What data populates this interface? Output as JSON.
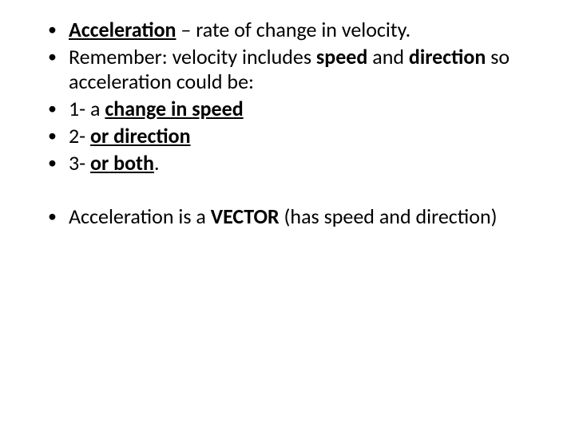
{
  "slide": {
    "background_color": "#ffffff",
    "text_color": "#000000",
    "font_family": "Calibri",
    "body_fontsize_pt": 20,
    "bullets_group1": [
      {
        "segments": [
          {
            "text": "Acceleration",
            "bold": true,
            "underline": true
          },
          {
            "text": " – rate of change in velocity.",
            "bold": false,
            "underline": false
          }
        ]
      },
      {
        "segments": [
          {
            "text": "Remember: velocity includes ",
            "bold": false,
            "underline": false
          },
          {
            "text": "speed",
            "bold": true,
            "underline": false
          },
          {
            "text": " and ",
            "bold": false,
            "underline": false
          },
          {
            "text": "direction",
            "bold": true,
            "underline": false
          },
          {
            "text": " so acceleration could be:",
            "bold": false,
            "underline": false
          }
        ]
      },
      {
        "segments": [
          {
            "text": "1- a ",
            "bold": false,
            "underline": false
          },
          {
            "text": "change in speed",
            "bold": true,
            "underline": true
          }
        ]
      },
      {
        "segments": [
          {
            "text": "2- ",
            "bold": false,
            "underline": false
          },
          {
            "text": "or direction",
            "bold": true,
            "underline": true
          }
        ]
      },
      {
        "segments": [
          {
            "text": "3- ",
            "bold": false,
            "underline": false
          },
          {
            "text": "or both",
            "bold": true,
            "underline": true
          },
          {
            "text": ".",
            "bold": false,
            "underline": false
          }
        ]
      }
    ],
    "bullets_group2": [
      {
        "segments": [
          {
            "text": "Acceleration is a ",
            "bold": false,
            "underline": false
          },
          {
            "text": "VECTOR",
            "bold": true,
            "underline": false
          },
          {
            "text": " (has speed and direction)",
            "bold": false,
            "underline": false
          }
        ]
      }
    ]
  }
}
